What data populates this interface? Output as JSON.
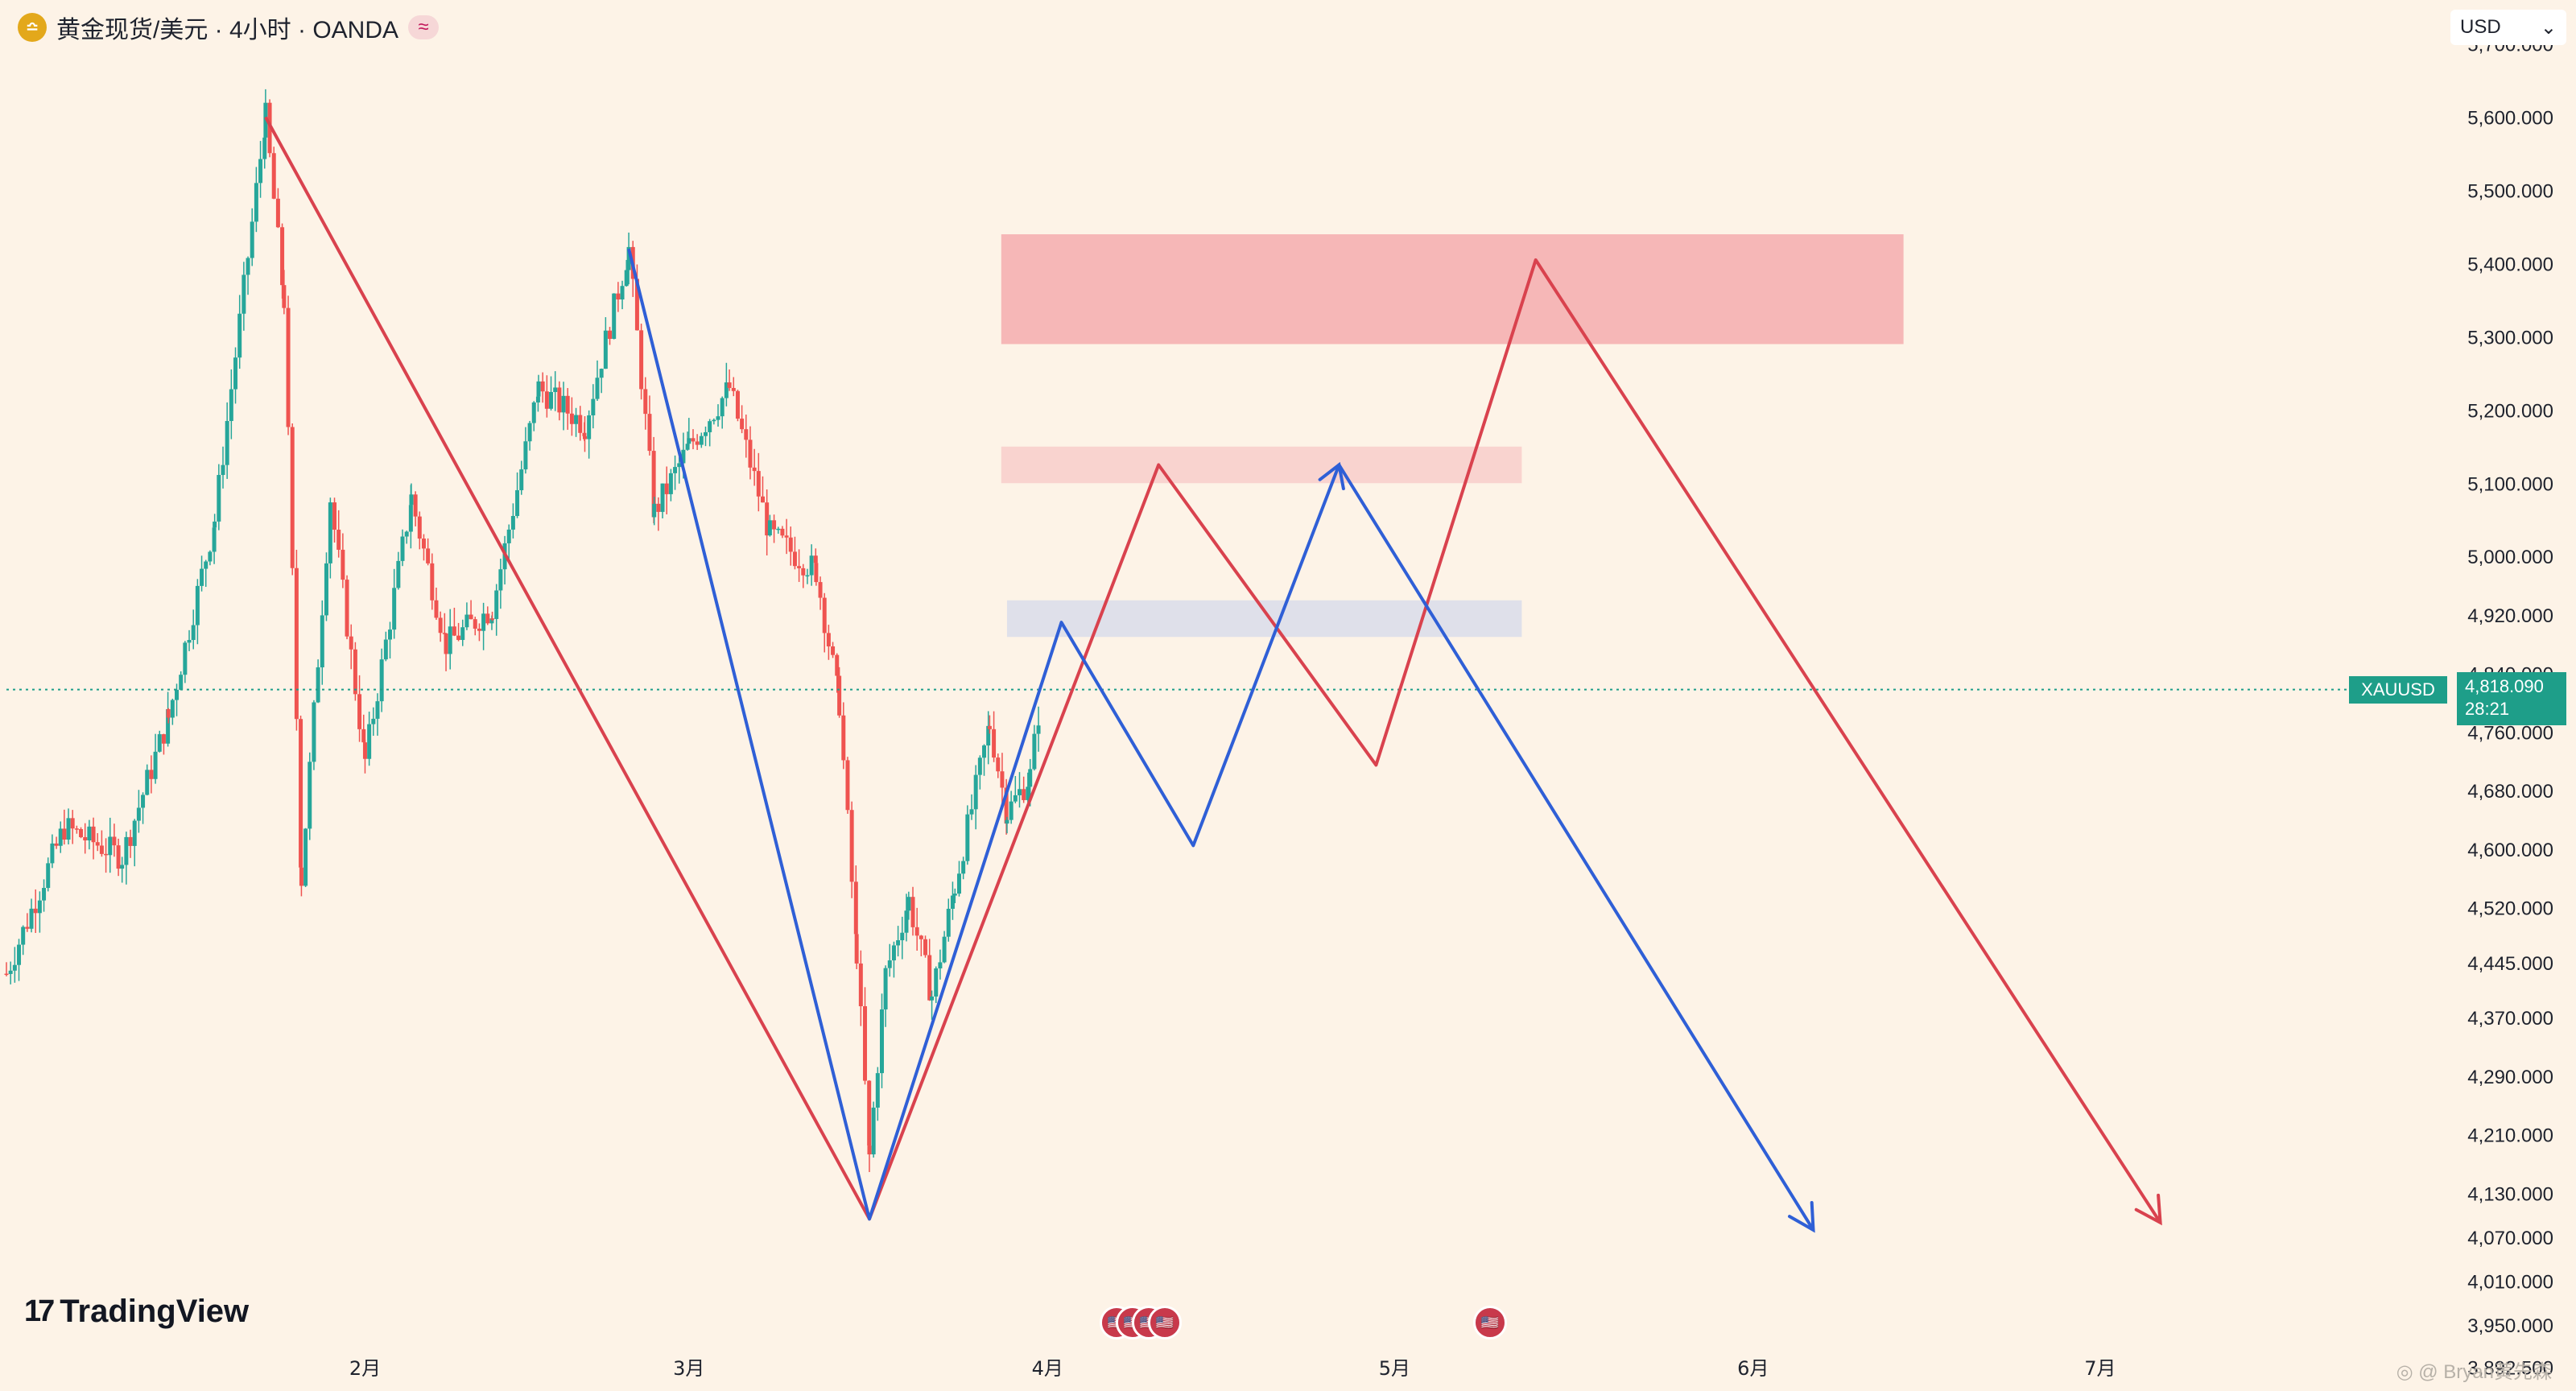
{
  "header": {
    "title": "黄金现货/美元 · 4小时 · OANDA",
    "logo_glyph": "≏",
    "badge": "≈"
  },
  "currency_selector": {
    "value": "USD",
    "chevron": "⌄"
  },
  "brand": {
    "name": "TradingView",
    "mark": "17"
  },
  "watermark": "◎ @ Bryan黄先森",
  "colors": {
    "background": "#fdf3e7",
    "red_path": "#d9424e",
    "blue_path": "#2f5fd6",
    "up_candle": "#26a69a",
    "down_candle": "#ef5350",
    "current_line": "#1e9e89"
  },
  "chart_data": {
    "type": "candlestick",
    "symbol": "XAUUSD",
    "current_price": 4818.09,
    "current_price_label": "4,818.090",
    "countdown": "28:21",
    "ylim": [
      3860,
      5760
    ],
    "y_ticks": [
      {
        "value": 5700,
        "label": "5,700.000"
      },
      {
        "value": 5600,
        "label": "5,600.000"
      },
      {
        "value": 5500,
        "label": "5,500.000"
      },
      {
        "value": 5400,
        "label": "5,400.000"
      },
      {
        "value": 5300,
        "label": "5,300.000"
      },
      {
        "value": 5200,
        "label": "5,200.000"
      },
      {
        "value": 5100,
        "label": "5,100.000"
      },
      {
        "value": 5000,
        "label": "5,000.000"
      },
      {
        "value": 4920,
        "label": "4,920.000"
      },
      {
        "value": 4840,
        "label": "4,840.000"
      },
      {
        "value": 4760,
        "label": "4,760.000"
      },
      {
        "value": 4680,
        "label": "4,680.000"
      },
      {
        "value": 4600,
        "label": "4,600.000"
      },
      {
        "value": 4520,
        "label": "4,520.000"
      },
      {
        "value": 4445,
        "label": "4,445.000"
      },
      {
        "value": 4370,
        "label": "4,370.000"
      },
      {
        "value": 4290,
        "label": "4,290.000"
      },
      {
        "value": 4210,
        "label": "4,210.000"
      },
      {
        "value": 4130,
        "label": "4,130.000"
      },
      {
        "value": 4070,
        "label": "4,070.000"
      },
      {
        "value": 4010,
        "label": "4,010.000"
      },
      {
        "value": 3950,
        "label": "3,950.000"
      },
      {
        "value": 3892.5,
        "label": "3,892.500"
      }
    ],
    "x_ticks": [
      {
        "x": 31,
        "label": "2月"
      },
      {
        "x": 59,
        "label": "3月"
      },
      {
        "x": 90,
        "label": "4月"
      },
      {
        "x": 120,
        "label": "5月"
      },
      {
        "x": 151,
        "label": "6月"
      },
      {
        "x": 181,
        "label": "7月"
      }
    ],
    "xlim": [
      0,
      211
    ],
    "zones": [
      {
        "x0": 86,
        "x1": 164,
        "y0": 5290,
        "y1": 5440,
        "color": "#f6b7b7"
      },
      {
        "x0": 86,
        "x1": 131,
        "y0": 5100,
        "y1": 5150,
        "color": "#f9d3cf"
      },
      {
        "x0": 86.5,
        "x1": 131,
        "y0": 4890,
        "y1": 4940,
        "color": "#dfe0ea"
      }
    ],
    "red_path": [
      {
        "x": 22.4,
        "y": 5600
      },
      {
        "x": 74.6,
        "y": 4095
      },
      {
        "x": 99.6,
        "y": 5125
      },
      {
        "x": 118.4,
        "y": 4715
      },
      {
        "x": 132.2,
        "y": 5405
      },
      {
        "x": 186.2,
        "y": 4090
      }
    ],
    "blue_path": [
      {
        "x": 53.8,
        "y": 5420
      },
      {
        "x": 74.6,
        "y": 4095
      },
      {
        "x": 91.2,
        "y": 4910
      },
      {
        "x": 102.6,
        "y": 4605
      },
      {
        "x": 115.2,
        "y": 5125
      },
      {
        "x": 156.2,
        "y": 4080
      }
    ],
    "swing_points": [
      {
        "x": 0,
        "y": 4430
      },
      {
        "x": 5,
        "y": 4630
      },
      {
        "x": 10,
        "y": 4590
      },
      {
        "x": 14,
        "y": 4780
      },
      {
        "x": 18,
        "y": 5050
      },
      {
        "x": 22.4,
        "y": 5600
      },
      {
        "x": 24,
        "y": 5350
      },
      {
        "x": 25.5,
        "y": 4560
      },
      {
        "x": 28,
        "y": 5080
      },
      {
        "x": 31,
        "y": 4720
      },
      {
        "x": 35,
        "y": 5080
      },
      {
        "x": 38,
        "y": 4880
      },
      {
        "x": 42,
        "y": 4930
      },
      {
        "x": 46,
        "y": 5230
      },
      {
        "x": 50,
        "y": 5180
      },
      {
        "x": 53.8,
        "y": 5420
      },
      {
        "x": 56,
        "y": 5060
      },
      {
        "x": 59,
        "y": 5150
      },
      {
        "x": 62.5,
        "y": 5230
      },
      {
        "x": 66,
        "y": 5030
      },
      {
        "x": 70,
        "y": 4980
      },
      {
        "x": 72,
        "y": 4800
      },
      {
        "x": 73.5,
        "y": 4460
      },
      {
        "x": 74.6,
        "y": 4180
      },
      {
        "x": 76,
        "y": 4430
      },
      {
        "x": 78,
        "y": 4530
      },
      {
        "x": 80,
        "y": 4400
      },
      {
        "x": 82,
        "y": 4550
      },
      {
        "x": 85,
        "y": 4770
      },
      {
        "x": 86.5,
        "y": 4650
      },
      {
        "x": 88.5,
        "y": 4700
      },
      {
        "x": 89.5,
        "y": 4818
      }
    ]
  },
  "events": {
    "group_a": [
      "🇺🇸",
      "🇺🇸",
      "🇺🇸",
      "🇺🇸"
    ],
    "group_b": [
      "🇺🇸"
    ]
  }
}
